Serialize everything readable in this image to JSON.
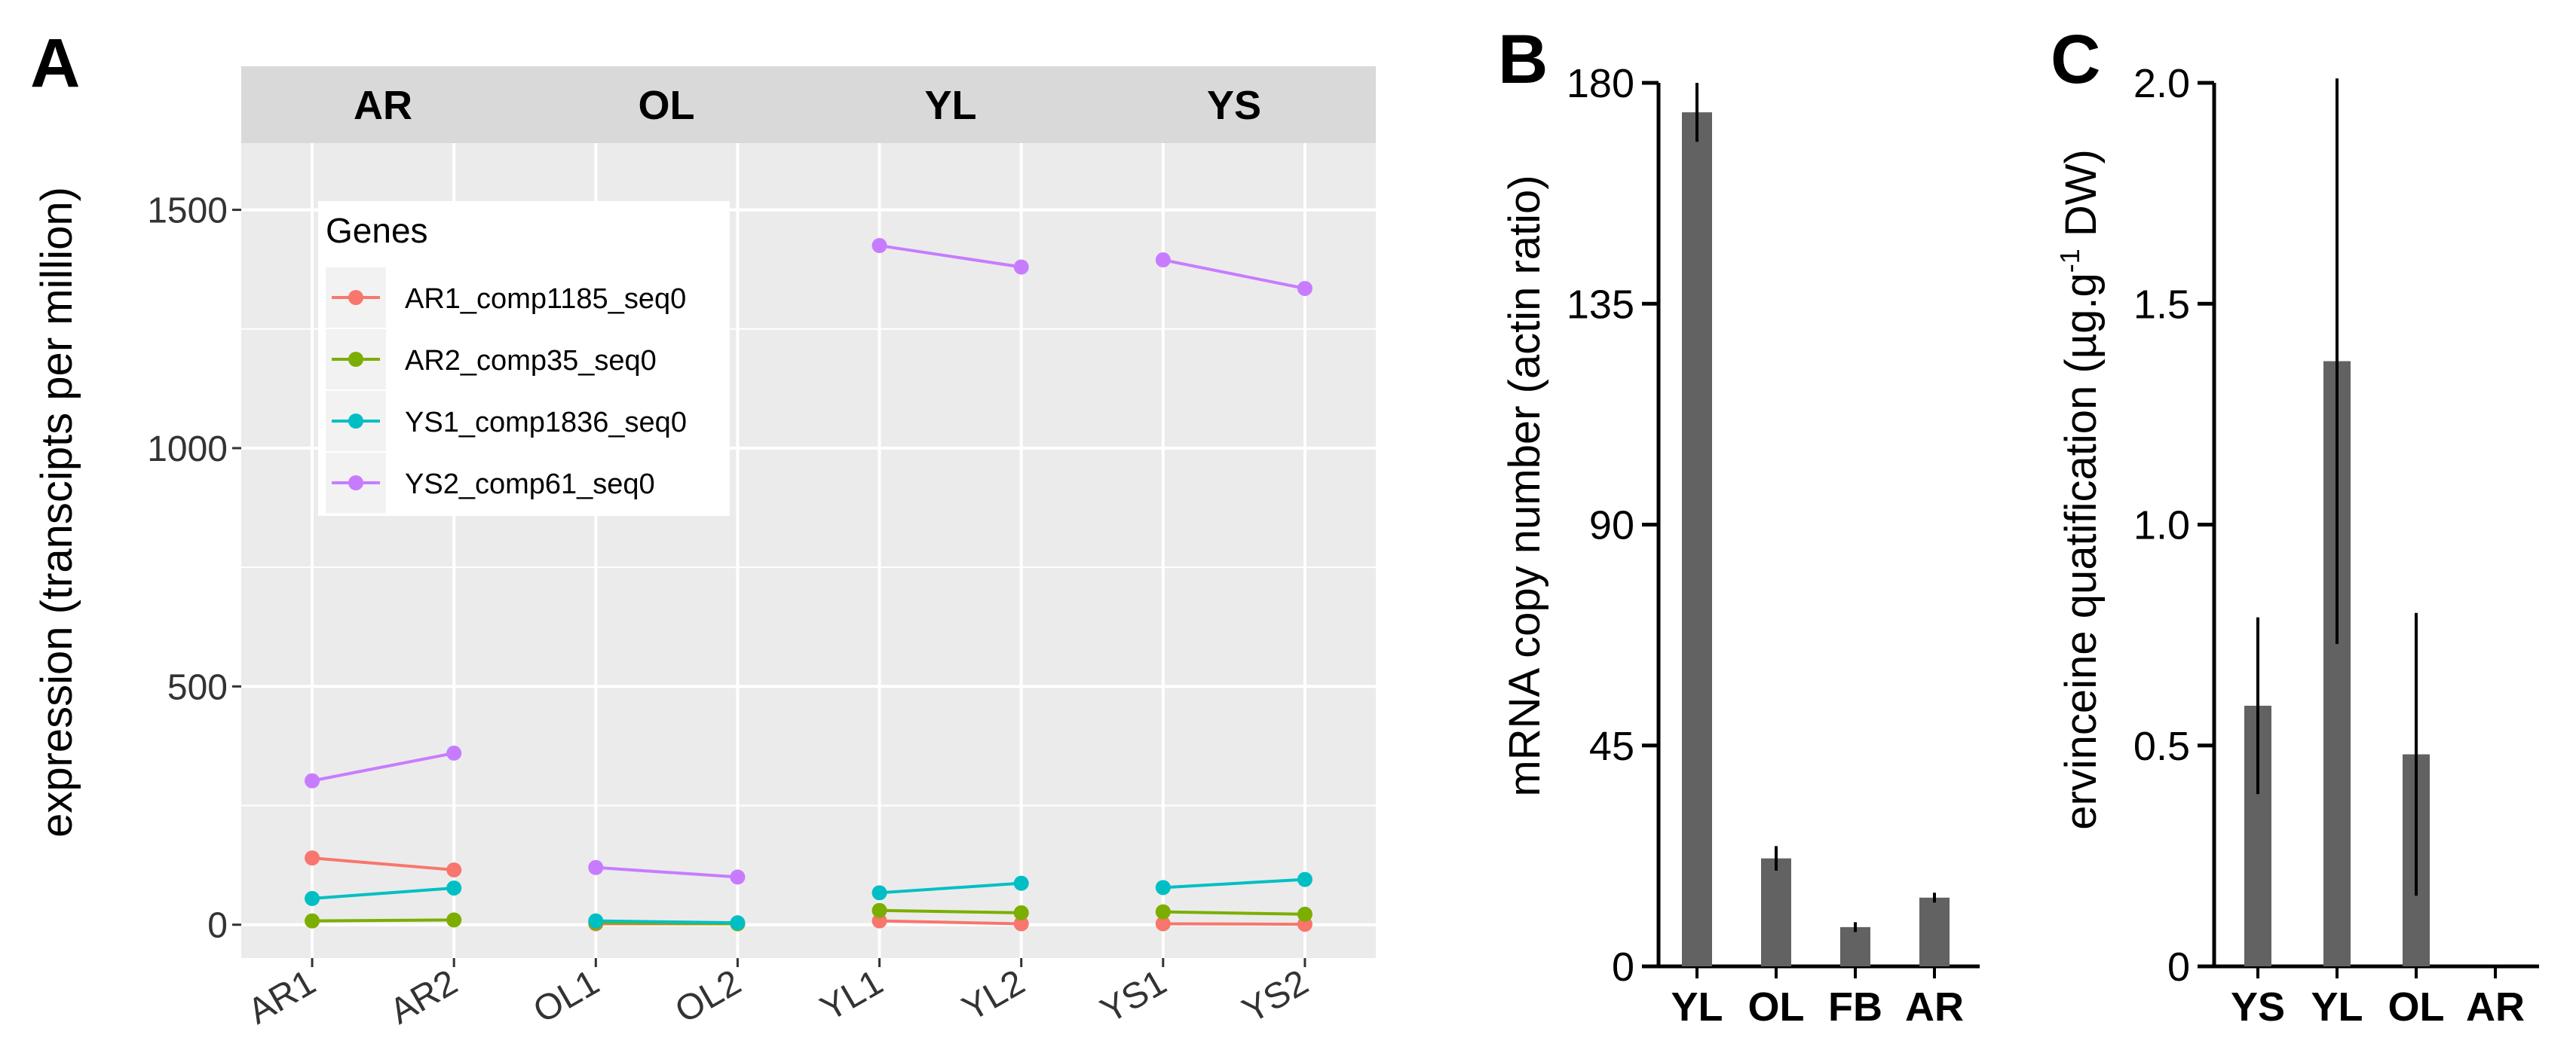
{
  "chart_data": [
    {
      "panel": "A",
      "type": "line",
      "facets": [
        "AR",
        "OL",
        "YL",
        "YS"
      ],
      "x_by_facet": {
        "AR": [
          "AR1",
          "AR2"
        ],
        "OL": [
          "OL1",
          "OL2"
        ],
        "YL": [
          "YL1",
          "YL2"
        ],
        "YS": [
          "YS1",
          "YS2"
        ]
      },
      "ylabel": "expression (transcipts per million)",
      "ylim": [
        -70,
        1640
      ],
      "yticks": [
        0,
        500,
        1000,
        1500
      ],
      "grid": true,
      "legend": {
        "title": "Genes",
        "placement": "top-left"
      },
      "series": [
        {
          "name": "AR1_comp1185_seq0",
          "color": "#F8766D",
          "values": {
            "AR": [
              140,
              115
            ],
            "OL": [
              2,
              2
            ],
            "YL": [
              8,
              2
            ],
            "YS": [
              2,
              1
            ]
          }
        },
        {
          "name": "AR2_comp35_seq0",
          "color": "#7CAE00",
          "values": {
            "AR": [
              8,
              10
            ],
            "OL": [
              4,
              2
            ],
            "YL": [
              30,
              25
            ],
            "YS": [
              27,
              22
            ]
          }
        },
        {
          "name": "YS1_comp1836_seq0",
          "color": "#00BFC4",
          "values": {
            "AR": [
              55,
              77
            ],
            "OL": [
              8,
              4
            ],
            "YL": [
              67,
              87
            ],
            "YS": [
              78,
              95
            ]
          }
        },
        {
          "name": "YS2_comp61_seq0",
          "color": "#C77CFF",
          "values": {
            "AR": [
              302,
              360
            ],
            "OL": [
              120,
              100
            ],
            "YL": [
              1425,
              1380
            ],
            "YS": [
              1395,
              1335
            ]
          }
        }
      ]
    },
    {
      "panel": "B",
      "type": "bar",
      "categories": [
        "YL",
        "OL",
        "FB",
        "AR"
      ],
      "values": [
        174,
        22,
        8,
        14
      ],
      "errors": [
        6,
        2.5,
        1,
        1
      ],
      "ylabel": "mRNA copy number (actin ratio)",
      "ylim": [
        0,
        180
      ],
      "yticks": [
        "0",
        "45",
        "90",
        "135",
        "180"
      ]
    },
    {
      "panel": "C",
      "type": "bar",
      "categories": [
        "YS",
        "YL",
        "OL",
        "AR"
      ],
      "values": [
        0.59,
        1.37,
        0.48,
        0.0
      ],
      "errors": [
        0.2,
        0.64,
        0.32,
        0.0
      ],
      "ylabel_parts": [
        "ervinceine quatification (µg.g",
        "-1",
        " DW)"
      ],
      "ylim": [
        0,
        2.0
      ],
      "yticks": [
        "0",
        "0.5",
        "1.0",
        "1.5",
        "2.0"
      ]
    }
  ]
}
